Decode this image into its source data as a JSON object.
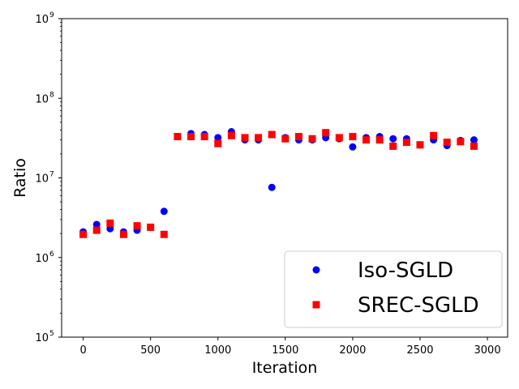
{
  "chart_data": {
    "type": "scatter",
    "xlabel": "Iteration",
    "ylabel": "Ratio",
    "xlim": [
      -160,
      3150
    ],
    "ylim": [
      100000,
      1000000000
    ],
    "yscale": "log",
    "grid": false,
    "legend_position": "bottom-right",
    "x_ticks": [
      0,
      500,
      1000,
      1500,
      2000,
      2500,
      3000
    ],
    "x_tick_labels": [
      "0",
      "500",
      "1000",
      "1500",
      "2000",
      "2500",
      "3000"
    ],
    "y_ticks": [
      100000,
      1000000,
      10000000,
      100000000,
      1000000000
    ],
    "y_tick_labels": [
      {
        "base": "10",
        "exp": "5"
      },
      {
        "base": "10",
        "exp": "6"
      },
      {
        "base": "10",
        "exp": "7"
      },
      {
        "base": "10",
        "exp": "8"
      },
      {
        "base": "10",
        "exp": "9"
      }
    ],
    "x": [
      0,
      100,
      200,
      300,
      400,
      500,
      600,
      700,
      800,
      900,
      1000,
      1100,
      1200,
      1300,
      1400,
      1500,
      1600,
      1700,
      1800,
      1900,
      2000,
      2100,
      2200,
      2300,
      2400,
      2500,
      2600,
      2700,
      2800,
      2900
    ],
    "series": [
      {
        "name": "Iso-SGLD",
        "marker": "circle",
        "color": "#0000ff",
        "values": [
          2100000,
          2600000,
          2300000,
          2100000,
          2200000,
          2400000,
          3800000,
          33000000,
          36000000,
          35000000,
          32000000,
          38000000,
          30000000,
          30000000,
          7600000,
          32000000,
          30000000,
          30000000,
          32000000,
          31000000,
          24500000,
          32000000,
          33000000,
          31000000,
          31000000,
          26000000,
          30000000,
          25500000,
          29500000,
          30000000
        ]
      },
      {
        "name": "SREC-SGLD",
        "marker": "square",
        "color": "#ff0000",
        "values": [
          1950000,
          2200000,
          2700000,
          1950000,
          2500000,
          2400000,
          1950000,
          33000000,
          33000000,
          33000000,
          27000000,
          34000000,
          32000000,
          32000000,
          35000000,
          31000000,
          33000000,
          31000000,
          37000000,
          32000000,
          33000000,
          30000000,
          30000000,
          25000000,
          28000000,
          26000000,
          34000000,
          28000000,
          28500000,
          25000000
        ]
      }
    ]
  }
}
